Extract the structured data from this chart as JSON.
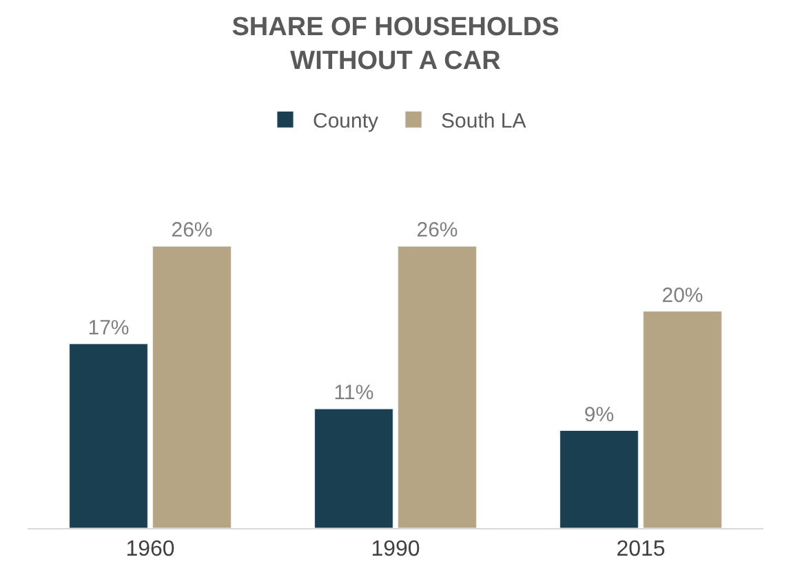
{
  "chart_data": {
    "type": "bar",
    "title": "SHARE OF HOUSEHOLDS\nWITHOUT A CAR",
    "categories": [
      "1960",
      "1990",
      "2015"
    ],
    "series": [
      {
        "name": "County",
        "color": "#1a3f50",
        "values": [
          17,
          11,
          9
        ],
        "value_labels": [
          "17%",
          "11%",
          "9%"
        ]
      },
      {
        "name": "South LA",
        "color": "#b5a585",
        "values": [
          26,
          26,
          20
        ],
        "value_labels": [
          "26%",
          "26%",
          "20%"
        ]
      }
    ],
    "legend": "top"
  }
}
